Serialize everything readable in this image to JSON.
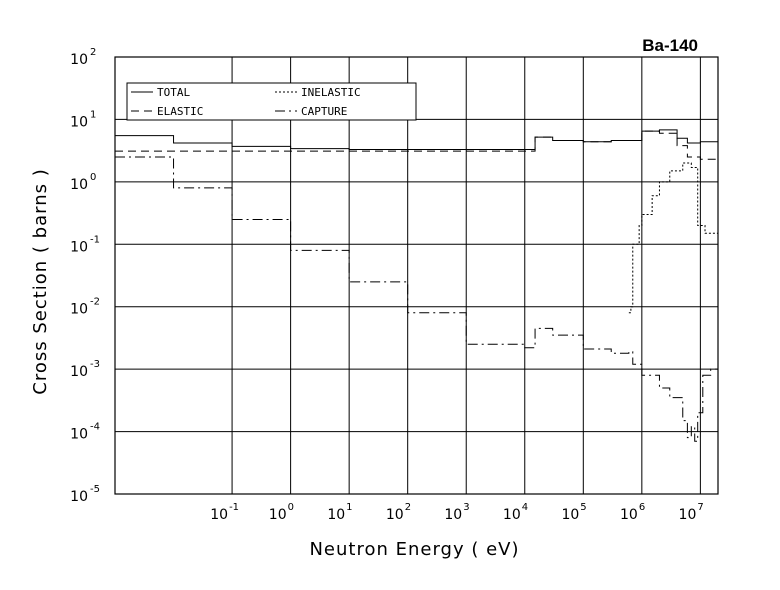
{
  "chart_data": {
    "type": "line",
    "title": "Ba-140",
    "xlabel": "Neutron Energy ( eV)",
    "ylabel": "Cross Section ( barns )",
    "xscale": "log",
    "yscale": "log",
    "xlim": [
      0.001,
      20000000
    ],
    "ylim": [
      1e-05,
      100
    ],
    "grid": true,
    "legend_position": "top-left",
    "x_ticks": [
      {
        "base": "10",
        "exp": "-1",
        "value": 0.1
      },
      {
        "base": "10",
        "exp": "0",
        "value": 1
      },
      {
        "base": "10",
        "exp": "1",
        "value": 10
      },
      {
        "base": "10",
        "exp": "2",
        "value": 100
      },
      {
        "base": "10",
        "exp": "3",
        "value": 1000
      },
      {
        "base": "10",
        "exp": "4",
        "value": 10000
      },
      {
        "base": "10",
        "exp": "5",
        "value": 100000
      },
      {
        "base": "10",
        "exp": "6",
        "value": 1000000
      },
      {
        "base": "10",
        "exp": "7",
        "value": 10000000
      }
    ],
    "y_ticks": [
      {
        "base": "10",
        "exp": "2",
        "value": 100
      },
      {
        "base": "10",
        "exp": "1",
        "value": 10
      },
      {
        "base": "10",
        "exp": "0",
        "value": 1
      },
      {
        "base": "10",
        "exp": "-1",
        "value": 0.1
      },
      {
        "base": "10",
        "exp": "-2",
        "value": 0.01
      },
      {
        "base": "10",
        "exp": "-3",
        "value": 0.001
      },
      {
        "base": "10",
        "exp": "-4",
        "value": 0.0001
      },
      {
        "base": "10",
        "exp": "-5",
        "value": 1e-05
      }
    ],
    "series": [
      {
        "name": "TOTAL",
        "dash": "solid",
        "points": [
          [
            0.001,
            5.5
          ],
          [
            0.01,
            4.2
          ],
          [
            0.1,
            3.7
          ],
          [
            1,
            3.4
          ],
          [
            10,
            3.3
          ],
          [
            100,
            3.3
          ],
          [
            1000,
            3.3
          ],
          [
            10000,
            3.3
          ],
          [
            15000,
            5.2
          ],
          [
            30000,
            4.6
          ],
          [
            100000,
            4.4
          ],
          [
            300000,
            4.6
          ],
          [
            1000000,
            6.5
          ],
          [
            2000000,
            6.8
          ],
          [
            4000000,
            5.0
          ],
          [
            6000000,
            4.2
          ],
          [
            10000000,
            4.4
          ],
          [
            20000000,
            4.8
          ]
        ]
      },
      {
        "name": "ELASTIC",
        "dash": "dashed",
        "points": [
          [
            0.001,
            3.1
          ],
          [
            0.01,
            3.1
          ],
          [
            0.1,
            3.1
          ],
          [
            1,
            3.1
          ],
          [
            10,
            3.1
          ],
          [
            100,
            3.1
          ],
          [
            1000,
            3.1
          ],
          [
            10000,
            3.1
          ],
          [
            15000,
            5.2
          ],
          [
            30000,
            4.6
          ],
          [
            100000,
            4.4
          ],
          [
            300000,
            4.6
          ],
          [
            1000000,
            6.5
          ],
          [
            2000000,
            6.0
          ],
          [
            4000000,
            3.8
          ],
          [
            6000000,
            2.5
          ],
          [
            10000000,
            2.3
          ],
          [
            20000000,
            2.8
          ]
        ]
      },
      {
        "name": "INELASTIC",
        "dash": "dotted",
        "points": [
          [
            600000,
            0.008
          ],
          [
            650000,
            0.01
          ],
          [
            700000,
            0.1
          ],
          [
            900000,
            0.2
          ],
          [
            1000000,
            0.3
          ],
          [
            1500000,
            0.6
          ],
          [
            2000000,
            1.0
          ],
          [
            3000000,
            1.5
          ],
          [
            5000000,
            2.0
          ],
          [
            7000000,
            1.7
          ],
          [
            9000000,
            0.2
          ],
          [
            12000000,
            0.15
          ],
          [
            20000000,
            0.09
          ]
        ]
      },
      {
        "name": "CAPTURE",
        "dash": "dashdot",
        "points": [
          [
            0.001,
            2.5
          ],
          [
            0.01,
            0.8
          ],
          [
            0.1,
            0.25
          ],
          [
            1,
            0.08
          ],
          [
            10,
            0.025
          ],
          [
            100,
            0.008
          ],
          [
            1000,
            0.0025
          ],
          [
            10000,
            0.0022
          ],
          [
            15000,
            0.0045
          ],
          [
            30000,
            0.0035
          ],
          [
            100000,
            0.0021
          ],
          [
            300000,
            0.0018
          ],
          [
            600000,
            0.0019
          ],
          [
            700000,
            0.0012
          ],
          [
            1000000,
            0.0008
          ],
          [
            2000000,
            0.0005
          ],
          [
            3000000,
            0.00035
          ],
          [
            5000000,
            0.00015
          ],
          [
            6000000,
            8e-05
          ],
          [
            7000000,
            0.00012
          ],
          [
            8000000,
            7e-05
          ],
          [
            9000000,
            0.0002
          ],
          [
            11000000,
            0.0008
          ],
          [
            15000000,
            0.001
          ],
          [
            20000000,
            0.001
          ]
        ]
      }
    ],
    "legend": [
      "TOTAL",
      "INELASTIC",
      "ELASTIC",
      "CAPTURE"
    ]
  }
}
